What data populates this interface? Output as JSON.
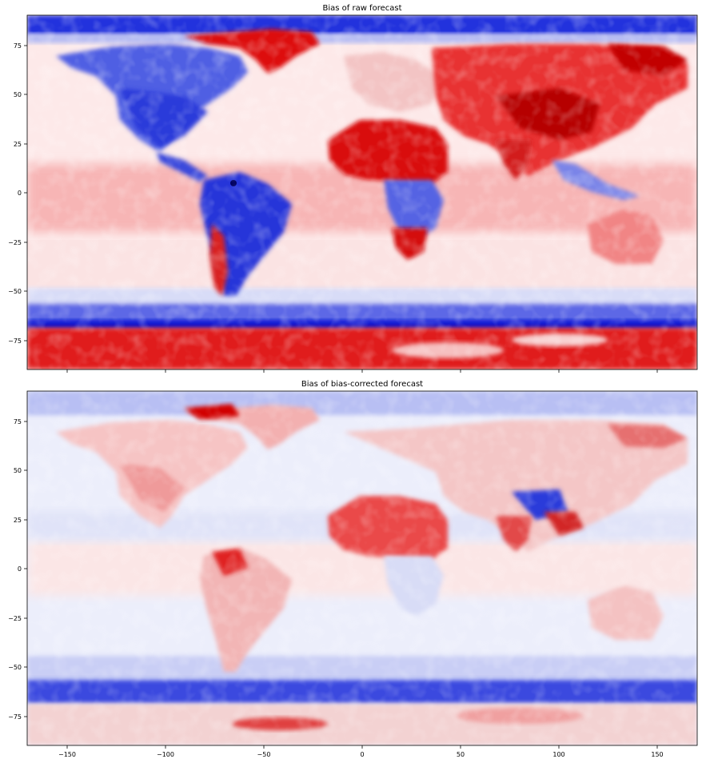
{
  "figure": {
    "panels": [
      {
        "title": "Bias of raw forecast",
        "y_ticks": [
          "75",
          "50",
          "25",
          "0",
          "−25",
          "−50",
          "−75"
        ],
        "x_ticks_visible": false
      },
      {
        "title": "Bias of bias-corrected forecast",
        "y_ticks": [
          "75",
          "50",
          "25",
          "0",
          "−25",
          "−50",
          "−75"
        ],
        "x_ticks": [
          "−150",
          "−100",
          "−50",
          "0",
          "50",
          "100",
          "150"
        ],
        "x_ticks_visible": true
      }
    ]
  },
  "chart_data": [
    {
      "type": "heatmap",
      "title": "Bias of raw forecast",
      "colormap": "seismic",
      "colors": {
        "negative": "#0000cc",
        "zero": "#ffffff",
        "positive": "#e00000"
      },
      "xlim": [
        -172,
        172
      ],
      "ylim": [
        -90,
        90
      ],
      "x_ticks": [
        -150,
        -100,
        -50,
        0,
        50,
        100,
        150
      ],
      "y_ticks": [
        -75,
        -50,
        -25,
        0,
        25,
        50,
        75
      ],
      "grid": false
    },
    {
      "type": "heatmap",
      "title": "Bias of bias-corrected forecast",
      "colormap": "seismic",
      "colors": {
        "negative": "#0000cc",
        "zero": "#ffffff",
        "positive": "#e00000"
      },
      "xlim": [
        -172,
        172
      ],
      "ylim": [
        -90,
        90
      ],
      "x_ticks": [
        -150,
        -100,
        -50,
        0,
        50,
        100,
        150
      ],
      "y_ticks": [
        -75,
        -50,
        -25,
        0,
        25,
        50,
        75
      ],
      "grid": false
    }
  ]
}
